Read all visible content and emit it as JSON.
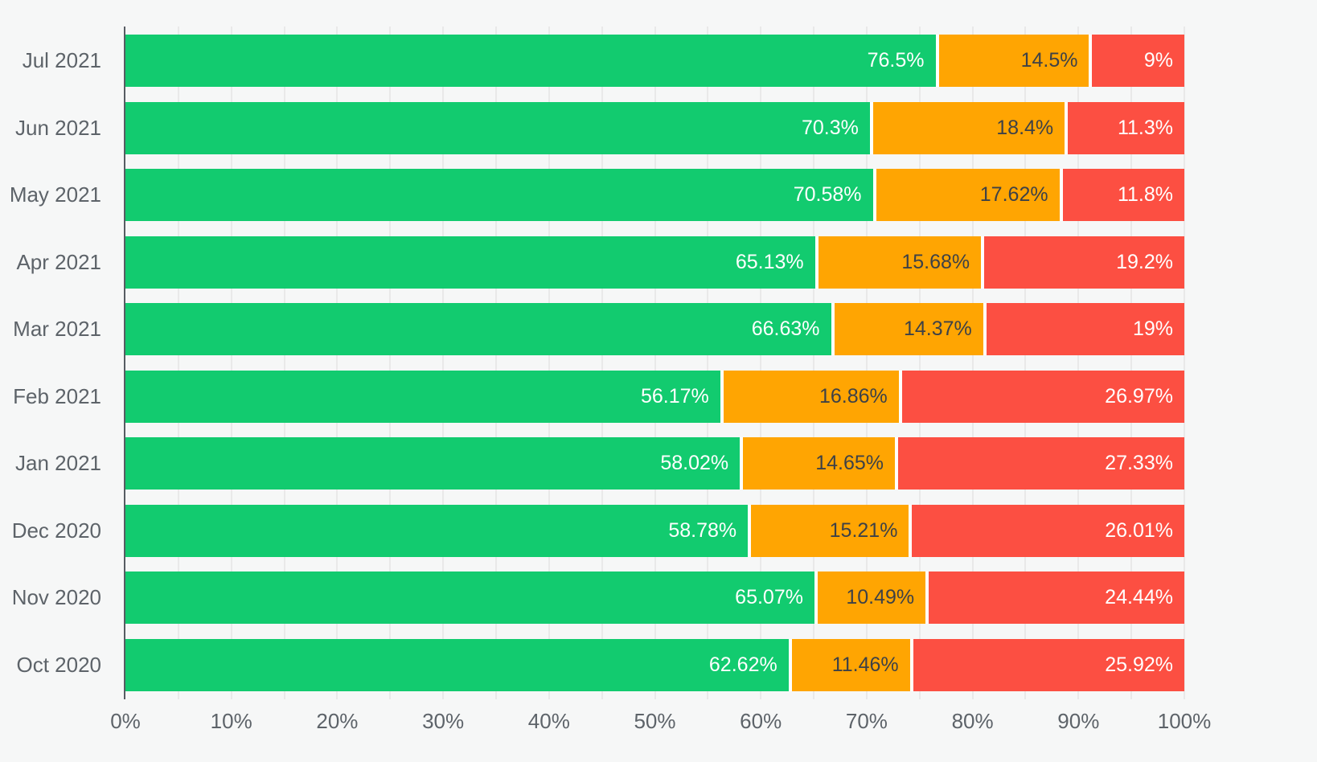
{
  "chart_data": {
    "type": "bar",
    "orientation": "horizontal",
    "stacked": true,
    "stacked_total": 100,
    "title": "",
    "xlabel": "",
    "ylabel": "",
    "legend": "none",
    "grid": "vertical",
    "categories": [
      "Jul 2021",
      "Jun 2021",
      "May 2021",
      "Apr 2021",
      "Mar 2021",
      "Feb 2021",
      "Jan 2021",
      "Dec 2020",
      "Nov 2020",
      "Oct 2020"
    ],
    "series": [
      {
        "name": "green",
        "color": "#12cb6f",
        "label_color": "#ffffff",
        "values": [
          76.5,
          70.3,
          70.58,
          65.13,
          66.63,
          56.17,
          58.02,
          58.78,
          65.07,
          62.62
        ],
        "labels": [
          "76.5%",
          "70.3%",
          "70.58%",
          "65.13%",
          "66.63%",
          "56.17%",
          "58.02%",
          "58.78%",
          "65.07%",
          "62.62%"
        ]
      },
      {
        "name": "orange",
        "color": "#ffa502",
        "label_color": "#3d4147",
        "values": [
          14.5,
          18.4,
          17.62,
          15.68,
          14.37,
          16.86,
          14.65,
          15.21,
          10.49,
          11.46
        ],
        "labels": [
          "14.5%",
          "18.4%",
          "17.62%",
          "15.68%",
          "14.37%",
          "16.86%",
          "14.65%",
          "15.21%",
          "10.49%",
          "11.46%"
        ]
      },
      {
        "name": "red",
        "color": "#fc4f42",
        "label_color": "#ffffff",
        "values": [
          9,
          11.3,
          11.8,
          19.2,
          19,
          26.97,
          27.33,
          26.01,
          24.44,
          25.92
        ],
        "labels": [
          "9%",
          "11.3%",
          "11.8%",
          "19.2%",
          "19%",
          "26.97%",
          "27.33%",
          "26.01%",
          "24.44%",
          "25.92%"
        ]
      }
    ],
    "x_axis": {
      "min": 0,
      "max": 100,
      "major_step": 10,
      "minor_step": 5,
      "tick_labels": [
        "0%",
        "10%",
        "20%",
        "30%",
        "40%",
        "50%",
        "60%",
        "70%",
        "80%",
        "90%",
        "100%"
      ]
    },
    "colors": {
      "background": "#f6f7f7",
      "gridline": "#e9e9e9",
      "axis_line": "#575c63",
      "tick_label": "#5d6369",
      "category_label": "#5d6369"
    }
  }
}
